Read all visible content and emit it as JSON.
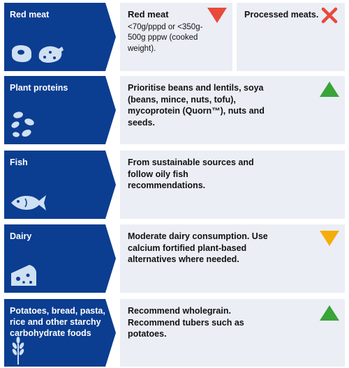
{
  "colors": {
    "label_bg": "#0b3d91",
    "panel_bg": "#ebeef5",
    "icon_fill": "#cfe0f2",
    "increase_green": "#3aa33a",
    "limit_red": "#e84a3a",
    "moderate_amber": "#f5ad0a",
    "avoid_red": "#e84a3a"
  },
  "rows": [
    {
      "label": "Red meat",
      "icon": "meat-sausage-icon",
      "limit_title": "Red meat",
      "limit_detail": "<70g/pppd or <350g-500g pppw (cooked weight).",
      "limit_indicator": "red-down-triangle-icon",
      "avoid_text": "Processed meats.",
      "avoid_indicator": "red-cross-icon"
    },
    {
      "label": "Plant proteins",
      "icon": "beans-icon",
      "text": "Prioritise beans and lentils, soya (beans, mince, nuts, tofu), mycoprotein (Quorn™), nuts and seeds.",
      "indicator": "green-up-triangle-icon"
    },
    {
      "label": "Fish",
      "icon": "fish-icon",
      "text": "From sustainable sources and follow oily fish recommendations."
    },
    {
      "label": "Dairy",
      "icon": "cheese-icon",
      "text": "Moderate dairy consumption. Use calcium fortified plant-based alternatives where needed.",
      "indicator": "amber-down-triangle-icon"
    },
    {
      "label": "Potatoes, bread, pasta, rice and other starchy carbohydrate foods",
      "icon": "wheat-icon",
      "text": "Recommend wholegrain. Recommend tubers such as potatoes.",
      "indicator": "green-up-triangle-icon"
    }
  ]
}
